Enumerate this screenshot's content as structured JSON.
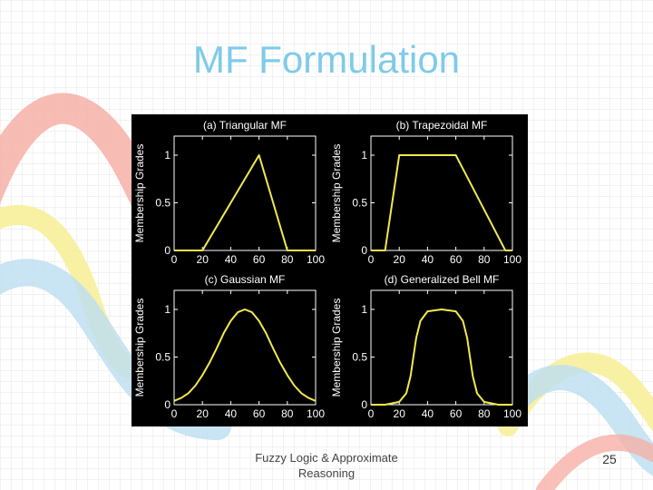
{
  "slide": {
    "title": "MF Formulation",
    "footer_line1": "Fuzzy Logic & Approximate",
    "footer_line2": "Reasoning",
    "page_number": "25"
  },
  "colors": {
    "title": "#7ecbe9",
    "figure_bg": "#000000",
    "axes": "#ffffff",
    "curve": "#f2e94e",
    "ribbon_red": "#f6b0a6",
    "ribbon_yellow": "#f7ef9a",
    "ribbon_blue": "#bfdff0"
  },
  "chart_data": [
    {
      "type": "line",
      "title": "(a) Triangular MF",
      "xlabel": "",
      "ylabel": "Membership Grades",
      "xlim": [
        0,
        100
      ],
      "ylim": [
        0,
        1.2
      ],
      "xticks": [
        0,
        20,
        40,
        60,
        80,
        100
      ],
      "yticks": [
        0,
        0.5,
        1
      ],
      "x": [
        0,
        20,
        60,
        80,
        100
      ],
      "y": [
        0,
        0,
        1,
        0,
        0
      ]
    },
    {
      "type": "line",
      "title": "(b) Trapezoidal MF",
      "xlabel": "",
      "ylabel": "Membership Grades",
      "xlim": [
        0,
        100
      ],
      "ylim": [
        0,
        1.2
      ],
      "xticks": [
        0,
        20,
        40,
        60,
        80,
        100
      ],
      "yticks": [
        0,
        0.5,
        1
      ],
      "x": [
        0,
        10,
        20,
        60,
        95,
        100
      ],
      "y": [
        0,
        0,
        1,
        1,
        0,
        0
      ]
    },
    {
      "type": "line",
      "title": "(c) Gaussian MF",
      "xlabel": "",
      "ylabel": "Membership Grades",
      "xlim": [
        0,
        100
      ],
      "ylim": [
        0,
        1.2
      ],
      "xticks": [
        0,
        20,
        40,
        60,
        80,
        100
      ],
      "yticks": [
        0,
        0.5,
        1
      ],
      "x": [
        0,
        5,
        10,
        15,
        20,
        25,
        30,
        35,
        40,
        45,
        50,
        55,
        60,
        65,
        70,
        75,
        80,
        85,
        90,
        95,
        100
      ],
      "y": [
        0.04,
        0.07,
        0.12,
        0.2,
        0.31,
        0.44,
        0.59,
        0.75,
        0.88,
        0.97,
        1.0,
        0.97,
        0.88,
        0.75,
        0.59,
        0.44,
        0.31,
        0.2,
        0.12,
        0.07,
        0.04
      ]
    },
    {
      "type": "line",
      "title": "(d) Generalized Bell MF",
      "xlabel": "",
      "ylabel": "Membership Grades",
      "xlim": [
        0,
        100
      ],
      "ylim": [
        0,
        1.2
      ],
      "xticks": [
        0,
        20,
        40,
        60,
        80,
        100
      ],
      "yticks": [
        0,
        0.5,
        1
      ],
      "x": [
        0,
        10,
        20,
        25,
        28,
        30,
        32,
        35,
        40,
        50,
        60,
        65,
        68,
        70,
        72,
        75,
        80,
        90,
        100
      ],
      "y": [
        0.0,
        0.0,
        0.03,
        0.12,
        0.3,
        0.5,
        0.7,
        0.88,
        0.98,
        1.0,
        0.98,
        0.88,
        0.7,
        0.5,
        0.3,
        0.12,
        0.03,
        0.0,
        0.0
      ]
    }
  ]
}
